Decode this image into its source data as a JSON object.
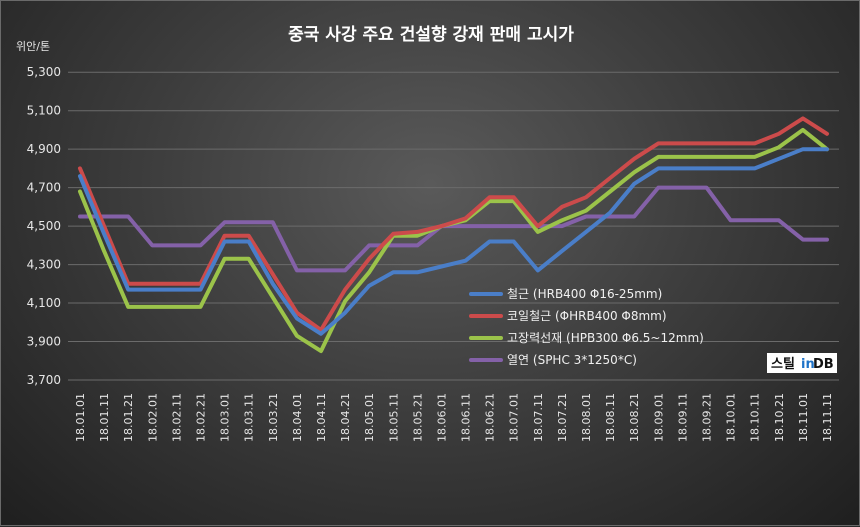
{
  "chart_data": {
    "type": "line",
    "title": "중국 사강 주요 건설향 강재 판매 고시가",
    "ylabel": "위안/톤",
    "ylim": [
      3700,
      5400
    ],
    "yticks": [
      "3,700",
      "3,900",
      "4,100",
      "4,300",
      "4,500",
      "4,700",
      "4,900",
      "5,100",
      "5,300"
    ],
    "yticks_values": [
      3700,
      3900,
      4100,
      4300,
      4500,
      4700,
      4900,
      5100,
      5300
    ],
    "grid": true,
    "legend_position": "right-bottom",
    "categories": [
      "18.01.01",
      "18.01.11",
      "18.01.21",
      "18.02.01",
      "18.02.11",
      "18.02.21",
      "18.03.01",
      "18.03.11",
      "18.03.21",
      "18.04.01",
      "18.04.11",
      "18.04.21",
      "18.05.01",
      "18.05.11",
      "18.05.21",
      "18.06.01",
      "18.06.11",
      "18.06.21",
      "18.07.01",
      "18.07.11",
      "18.07.21",
      "18.08.01",
      "18.08.11",
      "18.08.21",
      "18.09.01",
      "18.09.11",
      "18.09.21",
      "18.10.01",
      "18.10.11",
      "18.10.21",
      "18.11.01",
      "18.11.11"
    ],
    "series": [
      {
        "name": "철근 (HRB400 Φ16-25mm)",
        "color": "#4a7ec8",
        "values": [
          4760,
          4460,
          4170,
          4170,
          4170,
          4170,
          4420,
          4420,
          4200,
          4020,
          3940,
          4050,
          4190,
          4260,
          4260,
          4290,
          4320,
          4420,
          4420,
          4270,
          4370,
          4470,
          4570,
          4720,
          4800,
          4800,
          4800,
          4800,
          4800,
          4850,
          4900,
          4900
        ]
      },
      {
        "name": "코일철근 (ΦHRB400 Φ8mm)",
        "color": "#cc4b4b",
        "values": [
          4800,
          4500,
          4200,
          4200,
          4200,
          4200,
          4450,
          4450,
          4250,
          4050,
          3960,
          4170,
          4330,
          4460,
          4470,
          4500,
          4540,
          4650,
          4650,
          4500,
          4600,
          4650,
          4750,
          4850,
          4930,
          4930,
          4930,
          4930,
          4930,
          4980,
          5060,
          4980
        ]
      },
      {
        "name": "고장력선재 (HPB300 Φ6.5~12mm)",
        "color": "#9bc34a",
        "values": [
          4680,
          4370,
          4080,
          4080,
          4080,
          4080,
          4330,
          4330,
          4130,
          3930,
          3850,
          4110,
          4260,
          4450,
          4450,
          4500,
          4530,
          4630,
          4630,
          4470,
          4530,
          4580,
          4680,
          4780,
          4860,
          4860,
          4860,
          4860,
          4860,
          4910,
          5000,
          4900
        ]
      },
      {
        "name": "열연 (SPHC 3*1250*C)",
        "color": "#8461a8",
        "values": [
          4550,
          4550,
          4550,
          4400,
          4400,
          4400,
          4520,
          4520,
          4520,
          4270,
          4270,
          4270,
          4400,
          4400,
          4400,
          4500,
          4500,
          4500,
          4500,
          4500,
          4500,
          4550,
          4550,
          4550,
          4700,
          4700,
          4700,
          4530,
          4530,
          4530,
          4430,
          4430
        ]
      }
    ]
  },
  "watermark": {
    "text_dark": "스틸",
    "text_in": "in",
    "text_db": "DB"
  }
}
